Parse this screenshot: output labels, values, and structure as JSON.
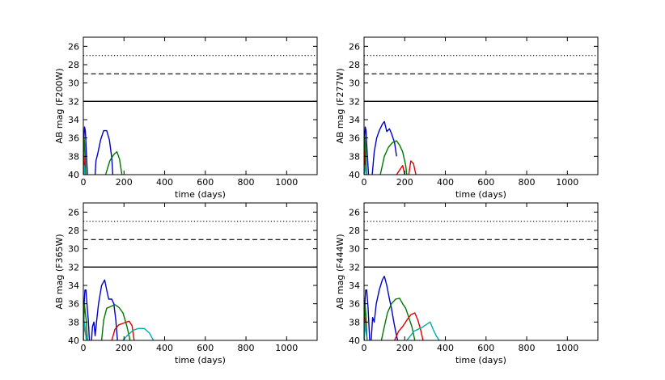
{
  "chart_data": [
    {
      "type": "line",
      "ylabel": "AB mag (F200W)",
      "xlabel": "time (days)",
      "xlim": [
        0,
        1150
      ],
      "ylim": [
        40,
        25
      ],
      "y_inverted": true,
      "xticks": [
        "0",
        "200",
        "400",
        "600",
        "800",
        "1000"
      ],
      "yticks": [
        "26",
        "28",
        "30",
        "32",
        "34",
        "36",
        "38",
        "40"
      ],
      "grid": false,
      "reference_lines": [
        {
          "style": "dotted",
          "y": 27
        },
        {
          "style": "dashed",
          "y": 29
        },
        {
          "style": "solid",
          "y": 32
        }
      ],
      "series": [
        {
          "color": "#0000cc",
          "points": [
            [
              0,
              40
            ],
            [
              3,
              36
            ],
            [
              6,
              34.8
            ],
            [
              10,
              35.2
            ],
            [
              14,
              37
            ],
            [
              20,
              40
            ]
          ]
        },
        {
          "color": "#0000cc",
          "points": [
            [
              58,
              40
            ],
            [
              62,
              38.5
            ],
            [
              72,
              37.6
            ],
            [
              85,
              36.2
            ],
            [
              100,
              35.2
            ],
            [
              115,
              35.2
            ],
            [
              128,
              36.2
            ],
            [
              140,
              38.2
            ],
            [
              145,
              40
            ]
          ]
        },
        {
          "color": "#007700",
          "points": [
            [
              0,
              40
            ],
            [
              4,
              36
            ],
            [
              8,
              37
            ],
            [
              12,
              40
            ]
          ]
        },
        {
          "color": "#007700",
          "points": [
            [
              110,
              40
            ],
            [
              130,
              38.5
            ],
            [
              150,
              37.8
            ],
            [
              165,
              37.5
            ],
            [
              178,
              38.3
            ],
            [
              190,
              40
            ]
          ]
        },
        {
          "color": "#dd0000",
          "points": [
            [
              0,
              40
            ],
            [
              3,
              38
            ],
            [
              6,
              39
            ],
            [
              9,
              40
            ]
          ]
        },
        {
          "color": "#00aaaa",
          "points": [
            [
              0,
              40
            ],
            [
              4,
              39
            ],
            [
              8,
              40
            ]
          ]
        }
      ]
    },
    {
      "type": "line",
      "ylabel": "AB mag (F277W)",
      "xlabel": "time (days)",
      "xlim": [
        0,
        1150
      ],
      "ylim": [
        40,
        25
      ],
      "y_inverted": true,
      "xticks": [
        "0",
        "200",
        "400",
        "600",
        "800",
        "1000"
      ],
      "yticks": [
        "26",
        "28",
        "30",
        "32",
        "34",
        "36",
        "38",
        "40"
      ],
      "grid": false,
      "reference_lines": [
        {
          "style": "dotted",
          "y": 27
        },
        {
          "style": "dashed",
          "y": 29
        },
        {
          "style": "solid",
          "y": 32
        }
      ],
      "series": [
        {
          "color": "#0000cc",
          "points": [
            [
              0,
              40
            ],
            [
              3,
              36
            ],
            [
              6,
              34.8
            ],
            [
              10,
              35.2
            ],
            [
              14,
              37
            ],
            [
              22,
              40
            ]
          ]
        },
        {
          "color": "#0000cc",
          "points": [
            [
              40,
              40
            ],
            [
              50,
              37.5
            ],
            [
              62,
              36
            ],
            [
              75,
              35.2
            ],
            [
              90,
              34.5
            ],
            [
              100,
              34.2
            ],
            [
              112,
              35.3
            ],
            [
              125,
              35
            ],
            [
              135,
              35.5
            ],
            [
              150,
              36.5
            ],
            [
              160,
              38
            ]
          ]
        },
        {
          "color": "#007700",
          "points": [
            [
              0,
              40
            ],
            [
              4,
              35.8
            ],
            [
              8,
              37
            ],
            [
              12,
              40
            ]
          ]
        },
        {
          "color": "#007700",
          "points": [
            [
              80,
              40
            ],
            [
              100,
              38
            ],
            [
              120,
              37
            ],
            [
              140,
              36.5
            ],
            [
              160,
              36.3
            ],
            [
              175,
              36.8
            ],
            [
              190,
              37.5
            ],
            [
              205,
              39
            ],
            [
              210,
              40
            ]
          ]
        },
        {
          "color": "#dd0000",
          "points": [
            [
              0,
              40
            ],
            [
              3,
              37.5
            ],
            [
              6,
              39
            ],
            [
              10,
              40
            ]
          ]
        },
        {
          "color": "#dd0000",
          "points": [
            [
              160,
              40
            ],
            [
              175,
              39.5
            ],
            [
              190,
              39
            ],
            [
              200,
              40
            ]
          ]
        },
        {
          "color": "#dd0000",
          "points": [
            [
              220,
              40
            ],
            [
              230,
              38.5
            ],
            [
              243,
              38.8
            ],
            [
              255,
              40
            ]
          ]
        },
        {
          "color": "#00aaaa",
          "points": [
            [
              0,
              40
            ],
            [
              5,
              39
            ],
            [
              10,
              40
            ]
          ]
        }
      ]
    },
    {
      "type": "line",
      "ylabel": "AB mag (F365W)",
      "xlabel": "time (days)",
      "xlim": [
        0,
        1150
      ],
      "ylim": [
        40,
        25
      ],
      "y_inverted": true,
      "xticks": [
        "0",
        "200",
        "400",
        "600",
        "800",
        "1000"
      ],
      "yticks": [
        "26",
        "28",
        "30",
        "32",
        "34",
        "36",
        "38",
        "40"
      ],
      "grid": false,
      "reference_lines": [
        {
          "style": "dotted",
          "y": 27
        },
        {
          "style": "dashed",
          "y": 29
        },
        {
          "style": "solid",
          "y": 32
        }
      ],
      "series": [
        {
          "color": "#0000cc",
          "points": [
            [
              0,
              40
            ],
            [
              4,
              36
            ],
            [
              8,
              34.5
            ],
            [
              13,
              34.5
            ],
            [
              18,
              36
            ],
            [
              25,
              38
            ],
            [
              30,
              40
            ]
          ]
        },
        {
          "color": "#0000cc",
          "points": [
            [
              40,
              40
            ],
            [
              45,
              38.5
            ],
            [
              52,
              38
            ],
            [
              58,
              39.5
            ],
            [
              65,
              38
            ],
            [
              75,
              36
            ],
            [
              90,
              34
            ],
            [
              105,
              33.4
            ],
            [
              115,
              34.5
            ],
            [
              125,
              35.5
            ],
            [
              140,
              35.5
            ],
            [
              150,
              36
            ],
            [
              160,
              37.8
            ],
            [
              168,
              40
            ]
          ]
        },
        {
          "color": "#007700",
          "points": [
            [
              0,
              40
            ],
            [
              5,
              36
            ],
            [
              10,
              37
            ],
            [
              15,
              38
            ],
            [
              20,
              40
            ]
          ]
        },
        {
          "color": "#007700",
          "points": [
            [
              90,
              40
            ],
            [
              100,
              37.8
            ],
            [
              115,
              36.5
            ],
            [
              135,
              36.3
            ],
            [
              155,
              36.1
            ],
            [
              175,
              36.4
            ],
            [
              195,
              37
            ],
            [
              215,
              38.5
            ],
            [
              230,
              40
            ]
          ]
        },
        {
          "color": "#dd0000",
          "points": [
            [
              0,
              40
            ],
            [
              5,
              38
            ],
            [
              10,
              39
            ],
            [
              15,
              40
            ]
          ]
        },
        {
          "color": "#dd0000",
          "points": [
            [
              140,
              40
            ],
            [
              155,
              38.8
            ],
            [
              175,
              38.3
            ],
            [
              200,
              38.1
            ],
            [
              225,
              37.9
            ],
            [
              240,
              38.4
            ],
            [
              250,
              40
            ]
          ]
        },
        {
          "color": "#00aaaa",
          "points": [
            [
              0,
              40
            ],
            [
              5,
              38
            ],
            [
              10,
              39
            ],
            [
              15,
              40
            ]
          ]
        },
        {
          "color": "#00aaaa",
          "points": [
            [
              195,
              40
            ],
            [
              215,
              39.5
            ],
            [
              245,
              38.9
            ],
            [
              270,
              38.7
            ],
            [
              300,
              38.7
            ],
            [
              325,
              39.2
            ],
            [
              345,
              40
            ]
          ]
        }
      ]
    },
    {
      "type": "line",
      "ylabel": "AB mag (F444W)",
      "xlabel": "time (days)",
      "xlim": [
        0,
        1150
      ],
      "ylim": [
        40,
        25
      ],
      "y_inverted": true,
      "xticks": [
        "0",
        "200",
        "400",
        "600",
        "800",
        "1000"
      ],
      "yticks": [
        "26",
        "28",
        "30",
        "32",
        "34",
        "36",
        "38",
        "40"
      ],
      "grid": false,
      "reference_lines": [
        {
          "style": "dotted",
          "y": 27
        },
        {
          "style": "dashed",
          "y": 29
        },
        {
          "style": "solid",
          "y": 32
        }
      ],
      "series": [
        {
          "color": "#0000cc",
          "points": [
            [
              0,
              40
            ],
            [
              4,
              36
            ],
            [
              8,
              34.5
            ],
            [
              13,
              34.5
            ],
            [
              20,
              36.5
            ],
            [
              28,
              40
            ]
          ]
        },
        {
          "color": "#0000cc",
          "points": [
            [
              35,
              40
            ],
            [
              42,
              37.5
            ],
            [
              50,
              38
            ],
            [
              60,
              36
            ],
            [
              75,
              34.5
            ],
            [
              90,
              33.4
            ],
            [
              100,
              33
            ],
            [
              112,
              34
            ],
            [
              125,
              35.5
            ],
            [
              135,
              36.5
            ],
            [
              145,
              37.8
            ],
            [
              155,
              39
            ],
            [
              165,
              40
            ]
          ]
        },
        {
          "color": "#007700",
          "points": [
            [
              0,
              40
            ],
            [
              5,
              36
            ],
            [
              10,
              37.5
            ],
            [
              15,
              40
            ]
          ]
        },
        {
          "color": "#007700",
          "points": [
            [
              85,
              40
            ],
            [
              100,
              38.5
            ],
            [
              115,
              37
            ],
            [
              135,
              36
            ],
            [
              155,
              35.5
            ],
            [
              175,
              35.4
            ],
            [
              190,
              36
            ],
            [
              205,
              36.5
            ],
            [
              220,
              37.5
            ],
            [
              235,
              38.5
            ],
            [
              250,
              40
            ]
          ]
        },
        {
          "color": "#dd0000",
          "points": [
            [
              0,
              40
            ],
            [
              5,
              37.5
            ],
            [
              10,
              39
            ],
            [
              15,
              40
            ]
          ]
        },
        {
          "color": "#dd0000",
          "points": [
            [
              150,
              40
            ],
            [
              170,
              39
            ],
            [
              190,
              38.5
            ],
            [
              210,
              37.8
            ],
            [
              230,
              37.2
            ],
            [
              250,
              37
            ],
            [
              265,
              37.8
            ],
            [
              280,
              39
            ],
            [
              290,
              40
            ]
          ]
        },
        {
          "color": "#00aaaa",
          "points": [
            [
              0,
              40
            ],
            [
              5,
              38
            ],
            [
              10,
              39
            ],
            [
              15,
              40
            ]
          ]
        },
        {
          "color": "#00aaaa",
          "points": [
            [
              210,
              40
            ],
            [
              225,
              39.6
            ],
            [
              245,
              39
            ],
            [
              265,
              38.8
            ],
            [
              285,
              38.6
            ],
            [
              305,
              38.3
            ],
            [
              325,
              38
            ],
            [
              340,
              38.8
            ],
            [
              355,
              39.5
            ],
            [
              370,
              40
            ]
          ]
        }
      ]
    }
  ]
}
